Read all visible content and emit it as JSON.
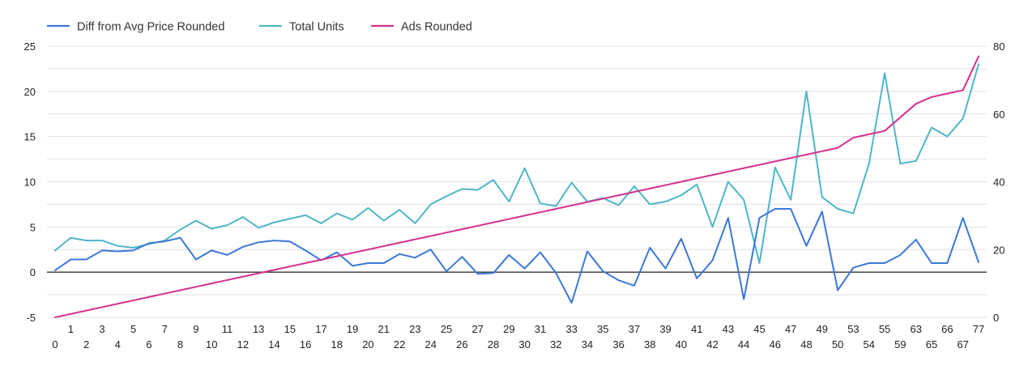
{
  "chart_data": {
    "type": "line",
    "categories": [
      "0",
      "1",
      "2",
      "3",
      "4",
      "5",
      "6",
      "7",
      "8",
      "9",
      "10",
      "11",
      "12",
      "13",
      "14",
      "15",
      "16",
      "17",
      "18",
      "19",
      "20",
      "21",
      "22",
      "23",
      "24",
      "25",
      "26",
      "27",
      "28",
      "29",
      "30",
      "31",
      "32",
      "33",
      "34",
      "35",
      "36",
      "37",
      "38",
      "39",
      "40",
      "41",
      "42",
      "43",
      "44",
      "45",
      "46",
      "47",
      "48",
      "49",
      "50",
      "53",
      "54",
      "55",
      "59",
      "63",
      "65",
      "66",
      "67",
      "77"
    ],
    "series": [
      {
        "name": "Diff from Avg Price Rounded",
        "axis": "left",
        "color": "#3b78d8",
        "values": [
          0.2,
          1.4,
          1.4,
          2.4,
          2.3,
          2.4,
          3.2,
          3.4,
          3.8,
          1.4,
          2.4,
          1.9,
          2.8,
          3.3,
          3.5,
          3.4,
          2.4,
          1.3,
          2.2,
          0.7,
          1.0,
          1.0,
          2.0,
          1.6,
          2.5,
          0.1,
          1.7,
          -0.2,
          -0.1,
          1.9,
          0.4,
          2.2,
          -0.1,
          -3.4,
          2.3,
          0.1,
          -0.9,
          -1.5,
          2.7,
          0.4,
          3.7,
          -0.7,
          1.3,
          6.0,
          -3.0,
          6.0,
          7.0,
          7.0,
          2.9,
          6.7,
          -2.0,
          0.5,
          1.0,
          1.0,
          1.9,
          3.6,
          1.0,
          1.0,
          6.0,
          1.1
        ]
      },
      {
        "name": "Total Units",
        "axis": "left",
        "color": "#4eb5c7",
        "values": [
          2.4,
          3.8,
          3.5,
          3.5,
          2.9,
          2.7,
          3.1,
          3.5,
          4.7,
          5.7,
          4.8,
          5.2,
          6.1,
          4.9,
          5.5,
          5.9,
          6.3,
          5.4,
          6.5,
          5.8,
          7.1,
          5.7,
          6.9,
          5.4,
          7.5,
          8.4,
          9.2,
          9.1,
          10.2,
          7.8,
          11.5,
          7.6,
          7.3,
          9.9,
          7.8,
          8.2,
          7.4,
          9.5,
          7.5,
          7.8,
          8.5,
          9.7,
          5.0,
          10.0,
          8.0,
          1.0,
          11.6,
          8.0,
          20.0,
          8.3,
          7.0,
          6.5,
          12.0,
          22.0,
          12.0,
          12.3,
          16.0,
          15.0,
          17.0,
          23.0
        ]
      },
      {
        "name": "Ads Rounded",
        "axis": "right",
        "color": "#d62f8c",
        "values": [
          0,
          1,
          2,
          3,
          4,
          5,
          6,
          7,
          8,
          9,
          10,
          11,
          12,
          13,
          14,
          15,
          16,
          17,
          18,
          19,
          20,
          21,
          22,
          23,
          24,
          25,
          26,
          27,
          28,
          29,
          30,
          31,
          32,
          33,
          34,
          35,
          36,
          37,
          38,
          39,
          40,
          41,
          42,
          43,
          44,
          45,
          46,
          47,
          48,
          49,
          50,
          53,
          54,
          55,
          59,
          63,
          65,
          66,
          67,
          77
        ]
      }
    ],
    "left_axis": {
      "min": -5,
      "max": 25,
      "ticks": [
        "-5",
        "0",
        "5",
        "10",
        "15",
        "20",
        "25"
      ]
    },
    "right_axis": {
      "min": 0,
      "max": 80,
      "ticks": [
        "0",
        "20",
        "40",
        "60",
        "80"
      ]
    },
    "legend_position": "top-left",
    "grid": true
  }
}
